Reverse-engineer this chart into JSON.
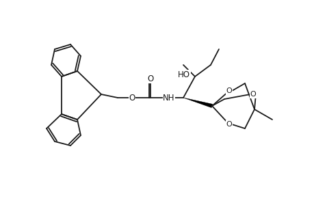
{
  "bg_color": "#ffffff",
  "line_color": "#1a1a1a",
  "lw": 1.3,
  "figsize": [
    4.6,
    3.0
  ],
  "dpi": 100,
  "notes": "Fmoc-amino-hydroxy compound with bicyclic orthoester"
}
